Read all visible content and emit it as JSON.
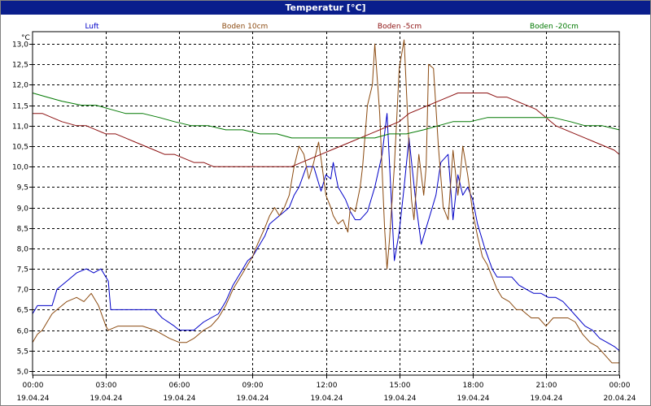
{
  "window": {
    "title": "Temperatur [°C]"
  },
  "chart_data": {
    "type": "line",
    "title": "Temperatur [°C]",
    "ylabel": "°C",
    "xlabel": "",
    "ylim": [
      4.9,
      13.3
    ],
    "xlim_hours": [
      0,
      24
    ],
    "grid": true,
    "legend_position": "top",
    "y_ticks": [
      "5,0",
      "5,5",
      "6,0",
      "6,5",
      "7,0",
      "7,5",
      "8,0",
      "8,5",
      "9,0",
      "9,5",
      "10,0",
      "10,5",
      "11,0",
      "11,5",
      "12,0",
      "12,5",
      "13,0"
    ],
    "y_tick_values": [
      5.0,
      5.5,
      6.0,
      6.5,
      7.0,
      7.5,
      8.0,
      8.5,
      9.0,
      9.5,
      10.0,
      10.5,
      11.0,
      11.5,
      12.0,
      12.5,
      13.0
    ],
    "x_ticks": [
      {
        "time": "00:00",
        "date": "19.04.24",
        "hour": 0
      },
      {
        "time": "03:00",
        "date": "19.04.24",
        "hour": 3
      },
      {
        "time": "06:00",
        "date": "19.04.24",
        "hour": 6
      },
      {
        "time": "09:00",
        "date": "19.04.24",
        "hour": 9
      },
      {
        "time": "12:00",
        "date": "19.04.24",
        "hour": 12
      },
      {
        "time": "15:00",
        "date": "19.04.24",
        "hour": 15
      },
      {
        "time": "18:00",
        "date": "19.04.24",
        "hour": 18
      },
      {
        "time": "21:00",
        "date": "19.04.24",
        "hour": 21
      },
      {
        "time": "00:00",
        "date": "20.04.24",
        "hour": 24
      }
    ],
    "series": [
      {
        "name": "Luft",
        "color": "#0000c8",
        "x": [
          0,
          0.2,
          0.4,
          0.8,
          1.0,
          1.4,
          1.8,
          2.2,
          2.5,
          2.8,
          3.1,
          3.2,
          3.5,
          4.0,
          4.5,
          5.0,
          5.3,
          5.8,
          6.0,
          6.3,
          6.6,
          7.0,
          7.3,
          7.6,
          7.9,
          8.2,
          8.5,
          8.8,
          9.0,
          9.2,
          9.5,
          9.7,
          9.9,
          10.1,
          10.3,
          10.5,
          10.7,
          10.9,
          11.2,
          11.5,
          11.8,
          12.0,
          12.2,
          12.3,
          12.5,
          12.8,
          13.0,
          13.2,
          13.4,
          13.7,
          14.0,
          14.3,
          14.5,
          14.8,
          15.0,
          15.2,
          15.4,
          15.7,
          15.9,
          16.1,
          16.3,
          16.5,
          16.7,
          17.0,
          17.2,
          17.4,
          17.6,
          17.8,
          18.0,
          18.2,
          18.5,
          18.8,
          19.0,
          19.3,
          19.6,
          19.9,
          20.2,
          20.5,
          20.8,
          21.1,
          21.4,
          21.7,
          22.0,
          22.3,
          22.6,
          22.9,
          23.2,
          23.5,
          23.8,
          24.0
        ],
        "y": [
          6.4,
          6.6,
          6.6,
          6.6,
          7.0,
          7.2,
          7.4,
          7.5,
          7.4,
          7.5,
          7.2,
          6.5,
          6.5,
          6.5,
          6.5,
          6.5,
          6.3,
          6.1,
          6.0,
          6.0,
          6.0,
          6.2,
          6.3,
          6.4,
          6.7,
          7.1,
          7.4,
          7.7,
          7.8,
          8.0,
          8.3,
          8.6,
          8.7,
          8.8,
          8.9,
          9.0,
          9.3,
          9.5,
          10.0,
          10.0,
          9.4,
          9.8,
          9.7,
          10.1,
          9.5,
          9.2,
          8.9,
          8.7,
          8.7,
          8.9,
          9.5,
          10.3,
          11.3,
          7.7,
          8.4,
          9.5,
          10.7,
          9.0,
          8.1,
          8.5,
          8.9,
          9.3,
          10.1,
          10.3,
          8.7,
          9.8,
          9.3,
          9.5,
          9.2,
          8.6,
          8.0,
          7.5,
          7.3,
          7.3,
          7.3,
          7.1,
          7.0,
          6.9,
          6.9,
          6.8,
          6.8,
          6.7,
          6.5,
          6.3,
          6.1,
          6.0,
          5.8,
          5.7,
          5.6,
          5.5
        ]
      },
      {
        "name": "Boden 10cm",
        "color": "#8b4a10",
        "x": [
          0,
          0.2,
          0.4,
          0.6,
          0.8,
          1.0,
          1.4,
          1.8,
          2.1,
          2.4,
          2.7,
          3.0,
          3.1,
          3.5,
          4.0,
          4.5,
          5.0,
          5.3,
          5.6,
          6.0,
          6.3,
          6.6,
          7.0,
          7.3,
          7.6,
          7.9,
          8.2,
          8.5,
          8.8,
          9.0,
          9.2,
          9.5,
          9.7,
          9.9,
          10.1,
          10.3,
          10.5,
          10.7,
          10.9,
          11.1,
          11.3,
          11.5,
          11.7,
          11.8,
          12.0,
          12.2,
          12.3,
          12.5,
          12.7,
          12.9,
          13.0,
          13.2,
          13.4,
          13.5,
          13.7,
          13.9,
          14.0,
          14.2,
          14.4,
          14.5,
          14.6,
          14.8,
          15.0,
          15.2,
          15.4,
          15.5,
          15.6,
          15.8,
          16.0,
          16.1,
          16.2,
          16.4,
          16.6,
          16.8,
          17.0,
          17.2,
          17.4,
          17.5,
          17.6,
          17.8,
          18.0,
          18.2,
          18.4,
          18.6,
          18.8,
          19.0,
          19.2,
          19.5,
          19.8,
          20.0,
          20.2,
          20.4,
          20.7,
          21.0,
          21.3,
          21.6,
          21.9,
          22.2,
          22.5,
          22.8,
          23.1,
          23.4,
          23.7,
          24.0
        ],
        "y": [
          5.7,
          5.9,
          6.0,
          6.2,
          6.4,
          6.5,
          6.7,
          6.8,
          6.7,
          6.9,
          6.6,
          6.1,
          6.0,
          6.1,
          6.1,
          6.1,
          6.0,
          5.9,
          5.8,
          5.7,
          5.7,
          5.8,
          6.0,
          6.1,
          6.3,
          6.6,
          7.0,
          7.3,
          7.6,
          7.8,
          8.1,
          8.5,
          8.8,
          9.0,
          8.8,
          9.0,
          9.3,
          10.0,
          10.5,
          10.3,
          9.7,
          10.1,
          10.6,
          10.2,
          9.3,
          9.0,
          8.8,
          8.6,
          8.7,
          8.4,
          9.0,
          8.9,
          9.5,
          10.0,
          11.5,
          12.0,
          13.0,
          11.3,
          8.5,
          7.5,
          8.2,
          10.0,
          12.4,
          13.1,
          10.5,
          9.2,
          8.7,
          10.3,
          9.3,
          10.0,
          12.5,
          12.4,
          10.5,
          9.0,
          8.7,
          10.4,
          9.3,
          9.8,
          10.5,
          9.8,
          8.9,
          8.3,
          7.8,
          7.6,
          7.3,
          7.0,
          6.8,
          6.7,
          6.5,
          6.5,
          6.4,
          6.3,
          6.3,
          6.1,
          6.3,
          6.3,
          6.3,
          6.2,
          5.9,
          5.7,
          5.6,
          5.4,
          5.2,
          5.2
        ]
      },
      {
        "name": "Boden -5cm",
        "color": "#8c1010",
        "x": [
          0,
          0.4,
          0.8,
          1.2,
          1.8,
          2.2,
          2.6,
          3.0,
          3.4,
          3.8,
          4.2,
          4.6,
          5.0,
          5.4,
          5.8,
          6.2,
          6.6,
          7.0,
          7.4,
          7.8,
          8.2,
          8.6,
          9.0,
          9.4,
          9.8,
          10.2,
          10.6,
          11.0,
          11.4,
          11.8,
          12.2,
          12.6,
          13.0,
          13.4,
          13.8,
          14.2,
          14.6,
          15.0,
          15.4,
          15.8,
          16.2,
          16.6,
          17.0,
          17.4,
          17.8,
          18.2,
          18.6,
          19.0,
          19.4,
          19.8,
          20.2,
          20.6,
          21.0,
          21.4,
          21.8,
          22.2,
          22.6,
          23.0,
          23.4,
          23.8,
          24.0
        ],
        "y": [
          11.3,
          11.3,
          11.2,
          11.1,
          11.0,
          11.0,
          10.9,
          10.8,
          10.8,
          10.7,
          10.6,
          10.5,
          10.4,
          10.3,
          10.3,
          10.2,
          10.1,
          10.1,
          10.0,
          10.0,
          10.0,
          10.0,
          10.0,
          10.0,
          10.0,
          10.0,
          10.0,
          10.1,
          10.2,
          10.3,
          10.4,
          10.5,
          10.6,
          10.7,
          10.8,
          10.9,
          11.0,
          11.1,
          11.3,
          11.4,
          11.5,
          11.6,
          11.7,
          11.8,
          11.8,
          11.8,
          11.8,
          11.7,
          11.7,
          11.6,
          11.5,
          11.4,
          11.2,
          11.0,
          10.9,
          10.8,
          10.7,
          10.6,
          10.5,
          10.4,
          10.3
        ]
      },
      {
        "name": "Boden -20cm",
        "color": "#007800",
        "x": [
          0,
          0.6,
          1.2,
          2.0,
          2.6,
          3.2,
          3.8,
          4.5,
          5.2,
          5.8,
          6.5,
          7.2,
          7.9,
          8.6,
          9.3,
          10.0,
          10.6,
          11.3,
          12.0,
          12.6,
          13.3,
          14.0,
          14.6,
          15.3,
          16.0,
          16.6,
          17.2,
          17.9,
          18.6,
          19.3,
          20.0,
          20.6,
          21.3,
          22.0,
          22.6,
          23.3,
          24.0
        ],
        "y": [
          11.8,
          11.7,
          11.6,
          11.5,
          11.5,
          11.4,
          11.3,
          11.3,
          11.2,
          11.1,
          11.0,
          11.0,
          10.9,
          10.9,
          10.8,
          10.8,
          10.7,
          10.7,
          10.7,
          10.7,
          10.7,
          10.7,
          10.8,
          10.8,
          10.9,
          11.0,
          11.1,
          11.1,
          11.2,
          11.2,
          11.2,
          11.2,
          11.2,
          11.1,
          11.0,
          11.0,
          10.9
        ]
      }
    ]
  }
}
